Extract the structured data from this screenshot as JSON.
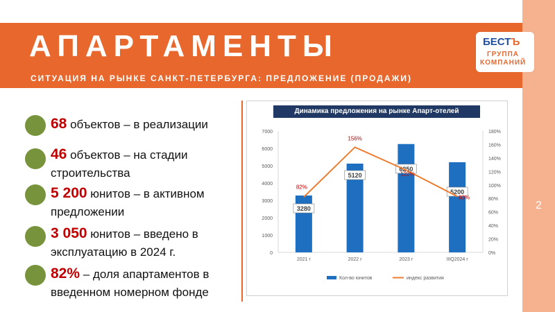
{
  "header": {
    "title": "АПАРТАМЕНТЫ",
    "subtitle": "СИТУАЦИЯ НА РЫНКЕ САНКТ-ПЕТЕРБУРГА: ПРЕДЛОЖЕНИЕ (ПРОДАЖИ)"
  },
  "logo": {
    "line1": "БЕСТ",
    "mark": "Ъ",
    "line2": "ГРУППА",
    "line3": "КОМПАНИЙ"
  },
  "page_number": "2",
  "stats": [
    {
      "value": "68",
      "text": "объектов – в реализации"
    },
    {
      "value": "46",
      "text": "объектов – на стадии строительства"
    },
    {
      "value": "5 200",
      "text": "юнитов – в активном предложении"
    },
    {
      "value": "3 050",
      "text": "юнитов – введено в эксплуатацию в 2024 г."
    },
    {
      "value": "82%",
      "text": "– доля апартаментов в введенном номерном фонде"
    }
  ],
  "colors": {
    "accent": "#e8672c",
    "bar": "#1f6fc0",
    "line": "#ed7d31",
    "bullet": "#77933c",
    "value_red": "#c00000"
  },
  "chart_data": {
    "type": "bar",
    "title": "Динамика предложения на рынке Апарт-отелей",
    "categories": [
      "2021 г",
      "2022 г",
      "2023 г",
      "IIIQ2024 г"
    ],
    "series": [
      {
        "name": "Кол-во юнитов",
        "type": "bar",
        "axis": "left",
        "values": [
          3280,
          5120,
          6250,
          5200
        ],
        "labels": [
          "3280",
          "5120",
          "6250",
          "5200"
        ]
      },
      {
        "name": "индекс развития",
        "type": "line",
        "axis": "right",
        "values": [
          82,
          156,
          122,
          83
        ],
        "labels": [
          "82%",
          "156%",
          "122%",
          "83%"
        ]
      }
    ],
    "ylim": [
      0,
      7000
    ],
    "yticks": [
      "0",
      "1000",
      "2000",
      "3000",
      "4000",
      "5000",
      "6000",
      "7000"
    ],
    "y2lim": [
      0,
      180
    ],
    "y2ticks": [
      "0%",
      "20%",
      "40%",
      "60%",
      "80%",
      "100%",
      "120%",
      "140%",
      "160%",
      "180%"
    ],
    "grid": false,
    "legend": "bottom"
  }
}
